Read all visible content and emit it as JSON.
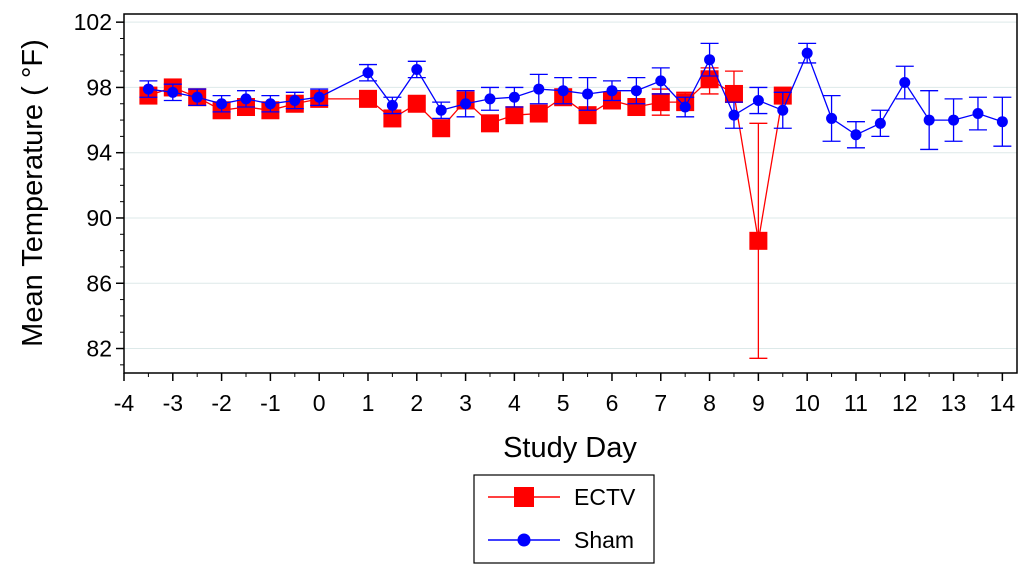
{
  "chart_data": {
    "type": "line",
    "title": "",
    "xlabel": "Study Day",
    "ylabel": "Mean Temperature ( °F)",
    "xlim": [
      -4.0,
      14.3
    ],
    "ylim": [
      80.5,
      102.5
    ],
    "x_ticks": [
      -4,
      -3,
      -2,
      -1,
      0,
      1,
      2,
      3,
      4,
      5,
      6,
      7,
      8,
      9,
      10,
      11,
      12,
      13,
      14
    ],
    "x_tick_labels": [
      "-4",
      "-3",
      "-2",
      "-1",
      "0",
      "1",
      "2",
      "3",
      "4",
      "5",
      "6",
      "7",
      "8",
      "9",
      "10",
      "11",
      "12",
      "13",
      "14"
    ],
    "y_ticks": [
      82,
      86,
      90,
      94,
      98,
      102
    ],
    "y_tick_labels": [
      "82",
      "86",
      "90",
      "94",
      "98",
      "102"
    ],
    "grid": "horizontal",
    "legend_position": "bottom-center",
    "series": [
      {
        "name": "ECTV",
        "color": "#ff0000",
        "marker": "square",
        "x": [
          -3.5,
          -3,
          -2.5,
          -2,
          -1.5,
          -1,
          -0.5,
          0,
          1,
          1.5,
          2,
          2.5,
          3,
          3.5,
          4,
          4.5,
          5,
          5.5,
          6,
          6.5,
          7,
          7.5,
          8,
          8.5,
          9,
          9.5
        ],
        "values": [
          97.5,
          98.0,
          97.4,
          96.6,
          96.8,
          96.6,
          97.0,
          97.3,
          97.3,
          96.1,
          97.0,
          95.5,
          97.2,
          95.8,
          96.3,
          96.4,
          97.4,
          96.3,
          97.2,
          96.8,
          97.1,
          97.1,
          98.5,
          97.6,
          88.6,
          97.5
        ],
        "err_low": [
          null,
          null,
          null,
          null,
          null,
          null,
          null,
          null,
          null,
          null,
          null,
          null,
          null,
          null,
          null,
          null,
          null,
          null,
          null,
          null,
          96.3,
          null,
          97.6,
          null,
          81.4,
          null
        ],
        "err_high": [
          null,
          null,
          null,
          null,
          null,
          null,
          null,
          null,
          null,
          null,
          null,
          null,
          null,
          null,
          null,
          null,
          null,
          null,
          null,
          null,
          97.9,
          97.7,
          99.2,
          99.0,
          95.8,
          null
        ]
      },
      {
        "name": "Sham",
        "color": "#0000ff",
        "marker": "circle",
        "x": [
          -3.5,
          -3,
          -2.5,
          -2,
          -1.5,
          -1,
          -0.5,
          0,
          1,
          1.5,
          2,
          2.5,
          3,
          3.5,
          4,
          4.5,
          5,
          5.5,
          6,
          6.5,
          7,
          7.5,
          8,
          8.5,
          9,
          9.5,
          10,
          10.5,
          11,
          11.5,
          12,
          12.5,
          13,
          13.5,
          14
        ],
        "values": [
          97.9,
          97.7,
          97.4,
          97.0,
          97.3,
          97.0,
          97.2,
          97.4,
          98.9,
          96.9,
          99.1,
          96.6,
          97.0,
          97.3,
          97.4,
          97.9,
          97.8,
          97.6,
          97.8,
          97.8,
          98.4,
          96.8,
          99.7,
          96.3,
          97.2,
          96.6,
          100.1,
          96.1,
          95.1,
          95.8,
          98.3,
          96.0,
          96.0,
          96.4,
          95.9
        ],
        "err_low": [
          97.4,
          97.2,
          96.9,
          96.5,
          96.8,
          96.5,
          96.7,
          96.9,
          98.4,
          96.4,
          98.6,
          96.1,
          96.2,
          96.6,
          96.8,
          97.0,
          97.0,
          96.6,
          97.2,
          97.0,
          97.6,
          96.2,
          98.7,
          95.5,
          96.4,
          95.5,
          99.5,
          94.7,
          94.3,
          95.0,
          97.3,
          94.2,
          94.7,
          95.4,
          94.4
        ],
        "err_high": [
          98.4,
          98.2,
          97.9,
          97.5,
          97.8,
          97.5,
          97.7,
          97.9,
          99.4,
          97.4,
          99.6,
          97.1,
          97.8,
          98.0,
          98.0,
          98.8,
          98.6,
          98.6,
          98.4,
          98.6,
          99.2,
          97.4,
          100.7,
          97.1,
          98.0,
          97.7,
          100.7,
          97.5,
          95.9,
          96.6,
          99.3,
          97.8,
          97.3,
          97.4,
          97.4
        ]
      }
    ]
  }
}
